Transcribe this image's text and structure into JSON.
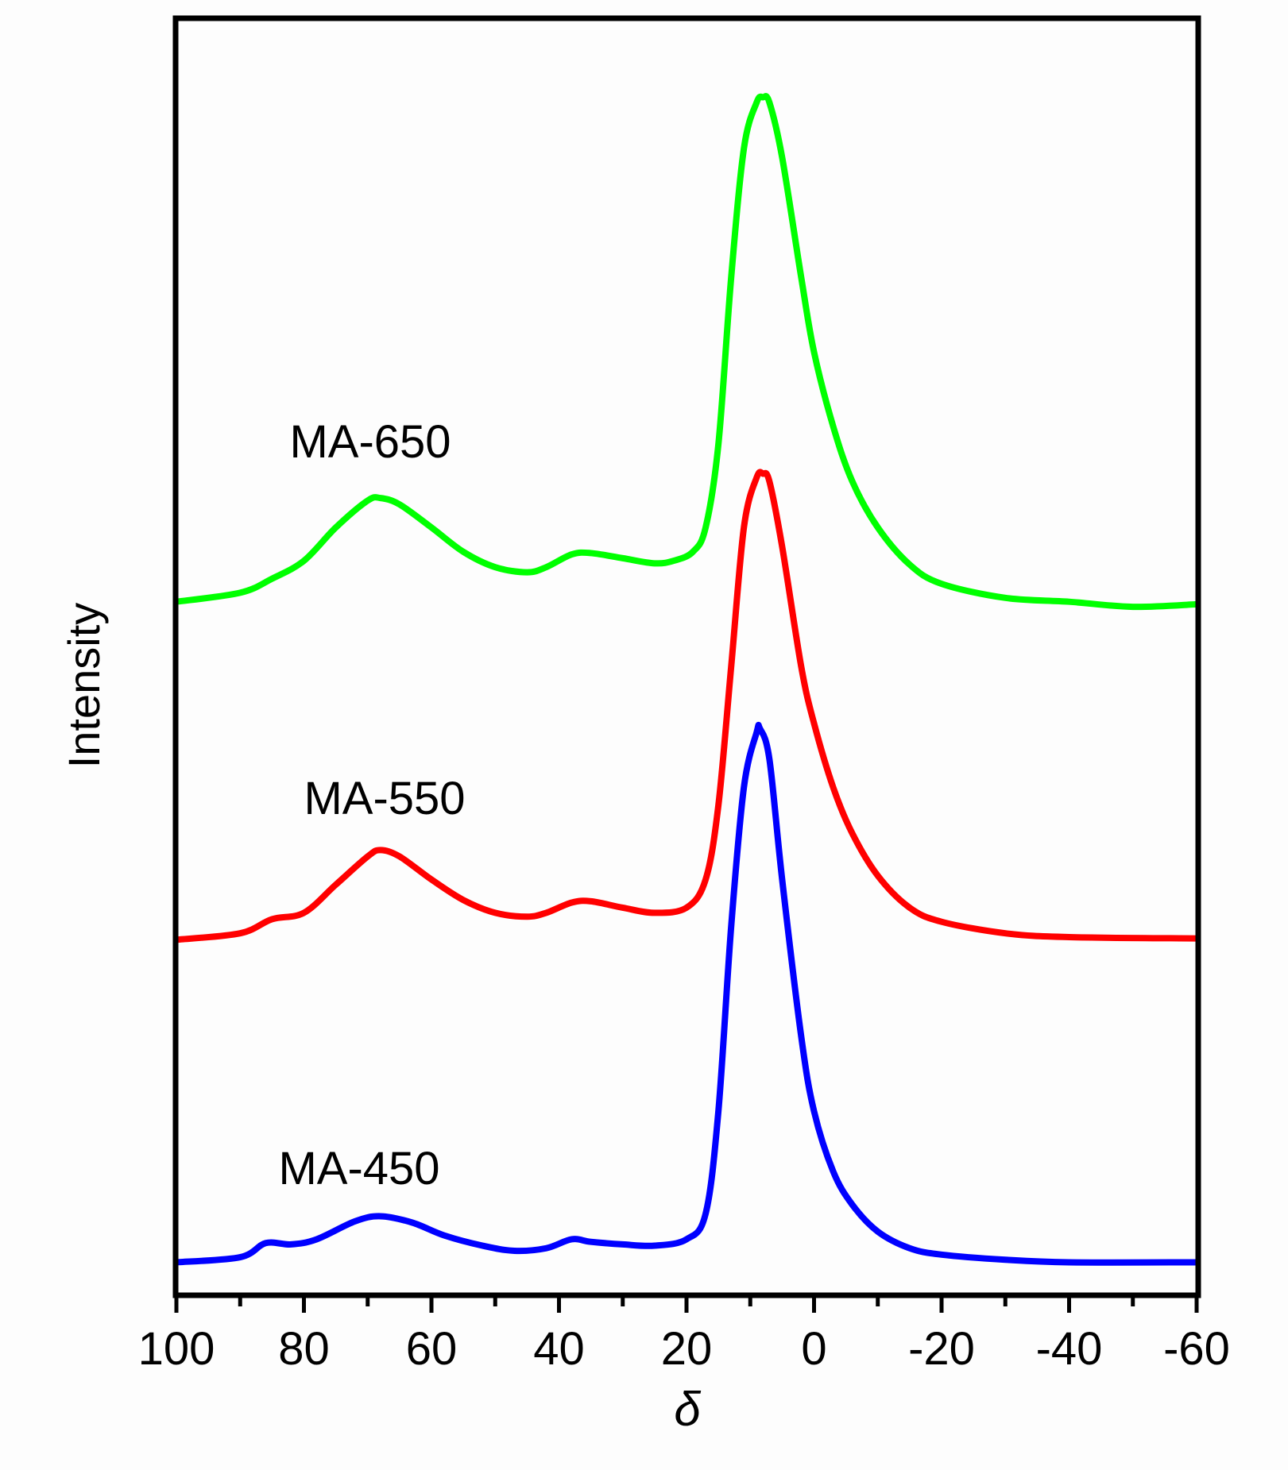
{
  "chart_data": {
    "type": "line",
    "xlabel": "δ",
    "ylabel": "Intensity",
    "xlim": [
      100,
      -60
    ],
    "ylim": [
      0,
      100
    ],
    "x_reversed": true,
    "y_ticks_shown": false,
    "grid": false,
    "legend": "none (inline labels)",
    "x_ticks": [
      100,
      80,
      60,
      40,
      20,
      0,
      -20,
      -40,
      -60
    ],
    "x_tick_labels": [
      "100",
      "80",
      "60",
      "40",
      "20",
      "0",
      "-20",
      "-40",
      "-60"
    ],
    "series": [
      {
        "name": "MA-650",
        "color": "#00ff00",
        "points": [
          [
            100,
            54.3
          ],
          [
            90,
            55.0
          ],
          [
            85,
            56.1
          ],
          [
            80,
            57.5
          ],
          [
            75,
            60.1
          ],
          [
            70,
            62.2
          ],
          [
            68,
            62.4
          ],
          [
            65,
            61.9
          ],
          [
            60,
            60.1
          ],
          [
            55,
            58.2
          ],
          [
            50,
            57.0
          ],
          [
            45,
            56.6
          ],
          [
            42,
            57.0
          ],
          [
            38,
            58.0
          ],
          [
            35,
            58.1
          ],
          [
            30,
            57.7
          ],
          [
            25,
            57.3
          ],
          [
            22,
            57.5
          ],
          [
            19,
            58.2
          ],
          [
            17,
            60.1
          ],
          [
            15,
            66.6
          ],
          [
            13,
            79.6
          ],
          [
            11,
            89.7
          ],
          [
            9,
            93.3
          ],
          [
            8,
            93.7
          ],
          [
            7,
            93.3
          ],
          [
            5,
            89.0
          ],
          [
            2,
            79.6
          ],
          [
            0,
            73.8
          ],
          [
            -3,
            68.0
          ],
          [
            -6,
            63.7
          ],
          [
            -10,
            60.1
          ],
          [
            -15,
            57.2
          ],
          [
            -20,
            55.7
          ],
          [
            -30,
            54.6
          ],
          [
            -40,
            54.3
          ],
          [
            -50,
            53.9
          ],
          [
            -60,
            54.1
          ]
        ]
      },
      {
        "name": "MA-550",
        "color": "#ff0000",
        "points": [
          [
            100,
            27.9
          ],
          [
            90,
            28.4
          ],
          [
            85,
            29.5
          ],
          [
            80,
            30.0
          ],
          [
            75,
            32.2
          ],
          [
            70,
            34.4
          ],
          [
            68,
            34.9
          ],
          [
            65,
            34.4
          ],
          [
            60,
            32.6
          ],
          [
            55,
            31.0
          ],
          [
            50,
            30.0
          ],
          [
            45,
            29.7
          ],
          [
            42,
            30.0
          ],
          [
            38,
            30.8
          ],
          [
            35,
            30.9
          ],
          [
            30,
            30.4
          ],
          [
            25,
            30.0
          ],
          [
            20,
            30.4
          ],
          [
            17,
            32.6
          ],
          [
            15,
            38.4
          ],
          [
            13,
            49.2
          ],
          [
            11,
            60.1
          ],
          [
            9,
            64.0
          ],
          [
            8,
            64.3
          ],
          [
            7,
            63.7
          ],
          [
            5,
            58.6
          ],
          [
            2,
            49.2
          ],
          [
            0,
            44.8
          ],
          [
            -3,
            39.8
          ],
          [
            -6,
            36.2
          ],
          [
            -10,
            32.9
          ],
          [
            -15,
            30.4
          ],
          [
            -20,
            29.3
          ],
          [
            -30,
            28.4
          ],
          [
            -40,
            28.1
          ],
          [
            -60,
            28.0
          ]
        ]
      },
      {
        "name": "MA-450",
        "color": "#0000ff",
        "points": [
          [
            100,
            2.7
          ],
          [
            90,
            3.1
          ],
          [
            86,
            4.2
          ],
          [
            82,
            4.1
          ],
          [
            78,
            4.5
          ],
          [
            72,
            5.9
          ],
          [
            68,
            6.3
          ],
          [
            63,
            5.8
          ],
          [
            58,
            4.8
          ],
          [
            52,
            4.0
          ],
          [
            47,
            3.6
          ],
          [
            42,
            3.8
          ],
          [
            38,
            4.5
          ],
          [
            35,
            4.3
          ],
          [
            30,
            4.1
          ],
          [
            25,
            4.0
          ],
          [
            20,
            4.5
          ],
          [
            17,
            6.5
          ],
          [
            15,
            14.5
          ],
          [
            13,
            28.9
          ],
          [
            11,
            39.8
          ],
          [
            9,
            44.1
          ],
          [
            8.5,
            44.4
          ],
          [
            7,
            42.0
          ],
          [
            5,
            32.6
          ],
          [
            2,
            20.3
          ],
          [
            0,
            14.5
          ],
          [
            -3,
            9.8
          ],
          [
            -6,
            7.2
          ],
          [
            -10,
            5.1
          ],
          [
            -15,
            3.8
          ],
          [
            -20,
            3.3
          ],
          [
            -30,
            2.9
          ],
          [
            -40,
            2.7
          ],
          [
            -60,
            2.7
          ]
        ]
      }
    ]
  }
}
